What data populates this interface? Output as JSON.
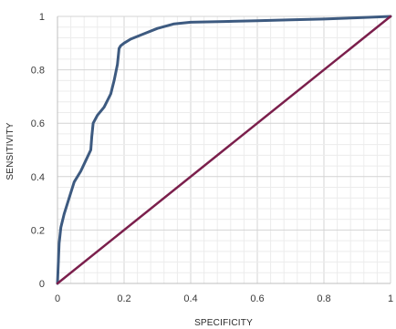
{
  "chart_data": {
    "type": "line",
    "title": "",
    "xlabel": "SPECIFICITY",
    "ylabel": "SENSITIVITY",
    "xlim": [
      0,
      1
    ],
    "ylim": [
      0,
      1
    ],
    "grid": true,
    "x_ticks": [
      0,
      0.2,
      0.4,
      0.6,
      0.8,
      1
    ],
    "y_ticks": [
      0,
      0.2,
      0.4,
      0.6,
      0.8,
      1
    ],
    "x_tick_labels": [
      "0",
      "0.2",
      "0.4",
      "0.6",
      "0.8",
      "1"
    ],
    "y_tick_labels": [
      "0",
      "0.2",
      "0.4",
      "0.6",
      "0.8",
      "1"
    ],
    "series": [
      {
        "color": "#3d5a80",
        "x": [
          0,
          0.005,
          0.01,
          0.02,
          0.035,
          0.05,
          0.07,
          0.085,
          0.1,
          0.103,
          0.107,
          0.12,
          0.14,
          0.16,
          0.17,
          0.18,
          0.185,
          0.19,
          0.2,
          0.22,
          0.26,
          0.3,
          0.35,
          0.4,
          0.5,
          0.6,
          0.7,
          0.8,
          0.9,
          1.0
        ],
        "y": [
          0,
          0.15,
          0.21,
          0.26,
          0.32,
          0.38,
          0.42,
          0.46,
          0.5,
          0.55,
          0.6,
          0.63,
          0.66,
          0.71,
          0.76,
          0.82,
          0.88,
          0.89,
          0.9,
          0.915,
          0.935,
          0.955,
          0.972,
          0.978,
          0.981,
          0.984,
          0.987,
          0.99,
          0.995,
          1.0
        ]
      },
      {
        "color": "#7b1f4c",
        "x": [
          0,
          1
        ],
        "y": [
          0,
          1
        ]
      }
    ]
  }
}
